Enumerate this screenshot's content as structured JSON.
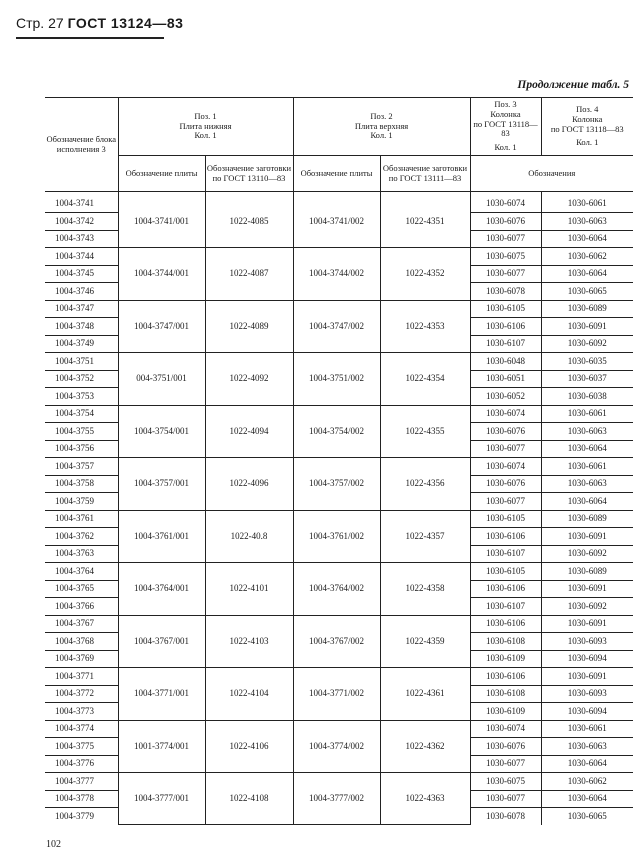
{
  "header": {
    "page_label": "Стр. 27",
    "standard": "ГОСТ 13124—83"
  },
  "continuation": "Продолжение табл. 5",
  "table": {
    "col_block": "Обозначение блока исполнения 3",
    "pos1": {
      "title": "Поз. 1",
      "name": "Плита нижняя",
      "qty": "Кол. 1",
      "sub1": "Обозначение плиты",
      "sub2": "Обозначение заготовки по ГОСТ 13110—83"
    },
    "pos2": {
      "title": "Поз. 2",
      "name": "Плита верхняя",
      "qty": "Кол. 1",
      "sub1": "Обозначение плиты",
      "sub2": "Обозначение заготовки по ГОСТ 13111—83"
    },
    "pos3": {
      "title": "Поз. 3",
      "name": "Колонка",
      "std": "по ГОСТ 13118—83",
      "qty": "Кол. 1"
    },
    "pos4": {
      "title": "Поз. 4",
      "name": "Колонка",
      "std": "по ГОСТ 13118—83",
      "qty": "Кол. 1"
    },
    "designations": "Обозначения",
    "groups": [
      {
        "codes": [
          "1004-3741",
          "1004-3742",
          "1004-3743"
        ],
        "p1": "1004-3741/001",
        "p1b": "1022-4085",
        "p2": "1004-3741/002",
        "p2b": "1022-4351",
        "cols": [
          [
            "1030-6074",
            "1030-6061"
          ],
          [
            "1030-6076",
            "1030-6063"
          ],
          [
            "1030-6077",
            "1030-6064"
          ]
        ]
      },
      {
        "codes": [
          "1004-3744",
          "1004-3745",
          "1004-3746"
        ],
        "p1": "1004-3744/001",
        "p1b": "1022-4087",
        "p2": "1004-3744/002",
        "p2b": "1022-4352",
        "cols": [
          [
            "1030-6075",
            "1030-6062"
          ],
          [
            "1030-6077",
            "1030-6064"
          ],
          [
            "1030-6078",
            "1030-6065"
          ]
        ]
      },
      {
        "codes": [
          "1004-3747",
          "1004-3748",
          "1004-3749"
        ],
        "p1": "1004-3747/001",
        "p1b": "1022-4089",
        "p2": "1004-3747/002",
        "p2b": "1022-4353",
        "cols": [
          [
            "1030-6105",
            "1030-6089"
          ],
          [
            "1030-6106",
            "1030-6091"
          ],
          [
            "1030-6107",
            "1030-6092"
          ]
        ]
      },
      {
        "codes": [
          "1004-3751",
          "1004-3752",
          "1004-3753"
        ],
        "p1": "004-3751/001",
        "p1b": "1022-4092",
        "p2": "1004-3751/002",
        "p2b": "1022-4354",
        "cols": [
          [
            "1030-6048",
            "1030-6035"
          ],
          [
            "1030-6051",
            "1030-6037"
          ],
          [
            "1030-6052",
            "1030-6038"
          ]
        ]
      },
      {
        "codes": [
          "1004-3754",
          "1004-3755",
          "1004-3756"
        ],
        "p1": "1004-3754/001",
        "p1b": "1022-4094",
        "p2": "1004-3754/002",
        "p2b": "1022-4355",
        "cols": [
          [
            "1030-6074",
            "1030-6061"
          ],
          [
            "1030-6076",
            "1030-6063"
          ],
          [
            "1030-6077",
            "1030-6064"
          ]
        ]
      },
      {
        "codes": [
          "1004-3757",
          "1004-3758",
          "1004-3759"
        ],
        "p1": "1004-3757/001",
        "p1b": "1022-4096",
        "p2": "1004-3757/002",
        "p2b": "1022-4356",
        "cols": [
          [
            "1030-6074",
            "1030-6061"
          ],
          [
            "1030-6076",
            "1030-6063"
          ],
          [
            "1030-6077",
            "1030-6064"
          ]
        ]
      },
      {
        "codes": [
          "1004-3761",
          "1004-3762",
          "1004-3763"
        ],
        "p1": "1004-3761/001",
        "p1b": "1022-40.8",
        "p2": "1004-3761/002",
        "p2b": "1022-4357",
        "cols": [
          [
            "1030-6105",
            "1030-6089"
          ],
          [
            "1030-6106",
            "1030-6091"
          ],
          [
            "1030-6107",
            "1030-6092"
          ]
        ]
      },
      {
        "codes": [
          "1004-3764",
          "1004-3765",
          "1004-3766"
        ],
        "p1": "1004-3764/001",
        "p1b": "1022-4101",
        "p2": "1004-3764/002",
        "p2b": "1022-4358",
        "cols": [
          [
            "1030-6105",
            "1030-6089"
          ],
          [
            "1030-6106",
            "1030-6091"
          ],
          [
            "1030-6107",
            "1030-6092"
          ]
        ]
      },
      {
        "codes": [
          "1004-3767",
          "1004-3768",
          "1004-3769"
        ],
        "p1": "1004-3767/001",
        "p1b": "1022-4103",
        "p2": "1004-3767/002",
        "p2b": "1022-4359",
        "cols": [
          [
            "1030-6106",
            "1030-6091"
          ],
          [
            "1030-6108",
            "1030-6093"
          ],
          [
            "1030-6109",
            "1030-6094"
          ]
        ]
      },
      {
        "codes": [
          "1004-3771",
          "1004-3772",
          "1004-3773"
        ],
        "p1": "1004-3771/001",
        "p1b": "1022-4104",
        "p2": "1004-3771/002",
        "p2b": "1022-4361",
        "cols": [
          [
            "1030-6106",
            "1030-6091"
          ],
          [
            "1030-6108",
            "1030-6093"
          ],
          [
            "1030-6109",
            "1030-6094"
          ]
        ]
      },
      {
        "codes": [
          "1004-3774",
          "1004-3775",
          "1004-3776"
        ],
        "p1": "1001-3774/001",
        "p1b": "1022-4106",
        "p2": "1004-3774/002",
        "p2b": "1022-4362",
        "cols": [
          [
            "1030-6074",
            "1030-6061"
          ],
          [
            "1030-6076",
            "1030-6063"
          ],
          [
            "1030-6077",
            "1030-6064"
          ]
        ]
      },
      {
        "codes": [
          "1004-3777",
          "1004-3778",
          "1004-3779"
        ],
        "p1": "1004-3777/001",
        "p1b": "1022-4108",
        "p2": "1004-3777/002",
        "p2b": "1022-4363",
        "cols": [
          [
            "1030-6075",
            "1030-6062"
          ],
          [
            "1030-6077",
            "1030-6064"
          ],
          [
            "1030-6078",
            "1030-6065"
          ]
        ]
      }
    ]
  },
  "page_number": "102"
}
